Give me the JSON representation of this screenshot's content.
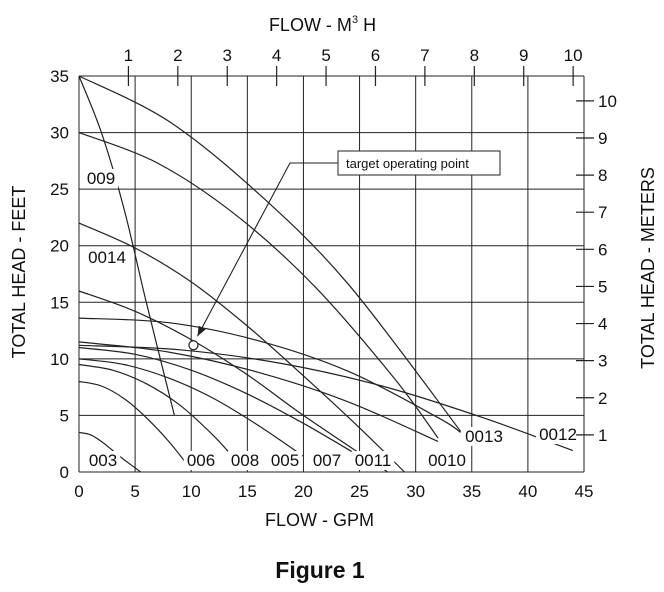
{
  "figure_caption": "Figure 1",
  "chart_data": {
    "type": "line",
    "title": "",
    "xlabel": "FLOW - GPM",
    "ylabel": "TOTAL HEAD - FEET",
    "x2label_prefix": "FLOW - M",
    "x2label_sup": "3",
    "x2label_suffix": " H",
    "y2label": "TOTAL HEAD - METERS",
    "xlim": [
      0,
      45
    ],
    "ylim": [
      0,
      35
    ],
    "x2lim": [
      0,
      10.22
    ],
    "y2lim": [
      0,
      10.67
    ],
    "grid": true,
    "x_ticks": [
      0,
      5,
      10,
      15,
      20,
      25,
      30,
      35,
      40,
      45
    ],
    "y_ticks": [
      0,
      5,
      10,
      15,
      20,
      25,
      30,
      35
    ],
    "x2_ticks": [
      1,
      2,
      3,
      4,
      5,
      6,
      7,
      8,
      9,
      10
    ],
    "y2_ticks": [
      1,
      2,
      3,
      4,
      5,
      6,
      7,
      8,
      9,
      10
    ],
    "series": [
      {
        "name": "003",
        "x": [
          0,
          1,
          2,
          3,
          4,
          5.5
        ],
        "y": [
          3.5,
          3.3,
          2.7,
          1.9,
          1.1,
          0
        ]
      },
      {
        "name": "006",
        "x": [
          0,
          2,
          4,
          6,
          8,
          10
        ],
        "y": [
          8,
          7.6,
          6.5,
          4.8,
          2.7,
          0.2
        ]
      },
      {
        "name": "008",
        "x": [
          0,
          3,
          6,
          9,
          12,
          14
        ],
        "y": [
          9.5,
          9,
          7.8,
          5.9,
          3.2,
          1
        ]
      },
      {
        "name": "005",
        "x": [
          0,
          4,
          8,
          12,
          16,
          20
        ],
        "y": [
          10,
          9.5,
          8.3,
          6.5,
          4.1,
          1.4
        ]
      },
      {
        "name": "007",
        "x": [
          0,
          5,
          10,
          15,
          20,
          25
        ],
        "y": [
          11,
          10.4,
          9,
          6.9,
          4.3,
          1.4
        ]
      },
      {
        "name": "0011",
        "x": [
          0,
          5,
          10,
          15,
          20,
          27.5
        ],
        "y": [
          16,
          14.2,
          11.7,
          8.6,
          5,
          0
        ]
      },
      {
        "name": "0010",
        "x": [
          0,
          8,
          16,
          24,
          32
        ],
        "y": [
          11.5,
          10.6,
          8.8,
          6.2,
          2.7
        ]
      },
      {
        "name": "0013",
        "x": [
          0,
          8,
          16,
          24,
          32,
          34
        ],
        "y": [
          13.6,
          13.2,
          11.6,
          8.9,
          4.8,
          3.5
        ]
      },
      {
        "name": "0012",
        "x": [
          0,
          9,
          18,
          27,
          36,
          44
        ],
        "y": [
          11.2,
          10.8,
          9.6,
          7.6,
          4.8,
          1.9
        ]
      },
      {
        "name": "009",
        "x": [
          0,
          2,
          4,
          6,
          8.5
        ],
        "y": [
          35,
          30,
          23.3,
          15,
          5
        ]
      },
      {
        "name": "0014",
        "x": [
          0,
          5,
          10,
          15,
          20,
          25,
          29
        ],
        "y": [
          22,
          19.8,
          16.8,
          12.9,
          8.5,
          3.9,
          0
        ]
      },
      {
        "name": "",
        "x": [
          0,
          7,
          14,
          21,
          28,
          32
        ],
        "y": [
          30,
          27.3,
          22.7,
          16.4,
          8.4,
          3
        ]
      },
      {
        "name": "",
        "x": [
          0,
          8,
          16,
          24,
          34
        ],
        "y": [
          35,
          31,
          24.6,
          16.6,
          3.6
        ]
      }
    ],
    "annotations": [
      {
        "text": "target operating point",
        "point": [
          10.2,
          11.2
        ]
      }
    ]
  }
}
